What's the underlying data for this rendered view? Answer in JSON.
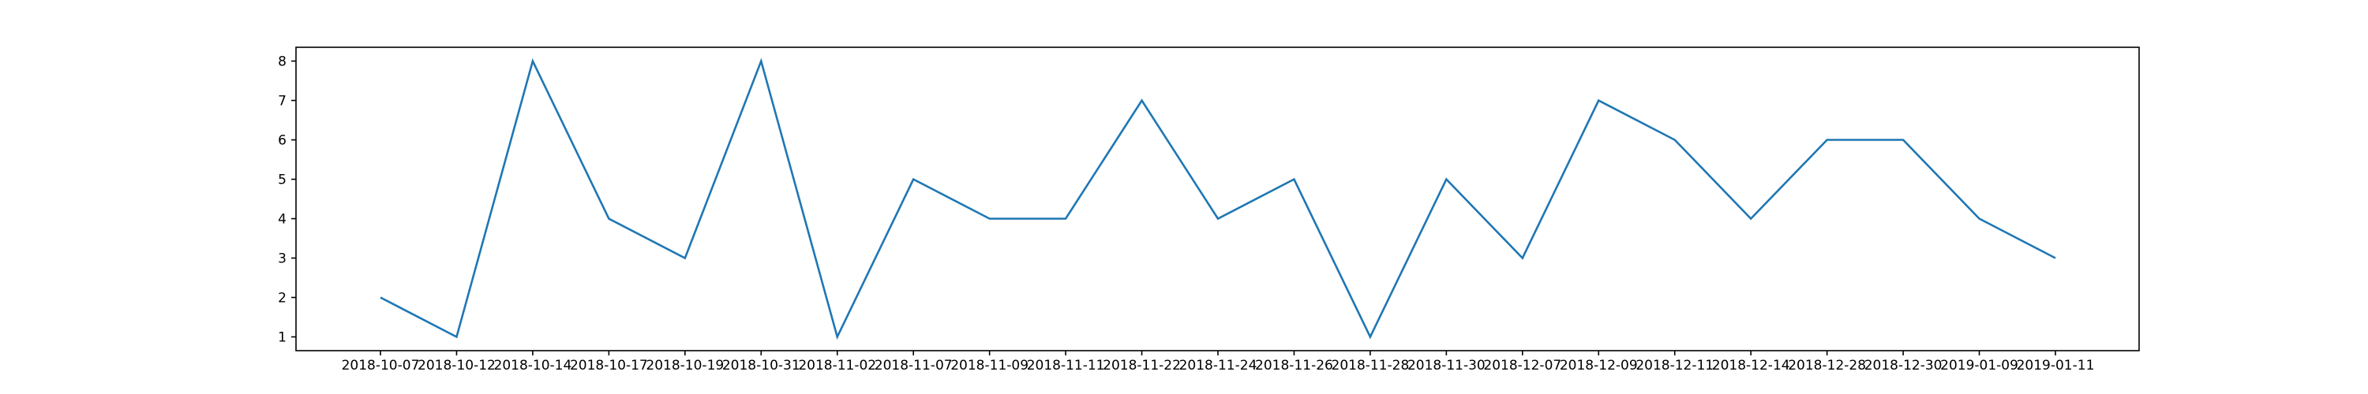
{
  "chart_data": {
    "type": "line",
    "title": "",
    "xlabel": "",
    "ylabel": "",
    "categories": [
      "2018-10-07",
      "2018-10-12",
      "2018-10-14",
      "2018-10-17",
      "2018-10-19",
      "2018-10-31",
      "2018-11-02",
      "2018-11-07",
      "2018-11-09",
      "2018-11-11",
      "2018-11-22",
      "2018-11-24",
      "2018-11-26",
      "2018-11-28",
      "2018-11-30",
      "2018-12-07",
      "2018-12-09",
      "2018-12-11",
      "2018-12-14",
      "2018-12-28",
      "2018-12-30",
      "2019-01-09",
      "2019-01-11"
    ],
    "series": [
      {
        "values": [
          2,
          1,
          8,
          4,
          3,
          8,
          1,
          5,
          4,
          4,
          7,
          4,
          5,
          1,
          5,
          3,
          7,
          6,
          4,
          6,
          6,
          4,
          3
        ],
        "color": "#1f77b4"
      }
    ],
    "ylim": [
      0.65,
      8.35
    ],
    "yticks": [
      1,
      2,
      3,
      4,
      5,
      6,
      7,
      8
    ],
    "grid": false,
    "legend": "none"
  }
}
